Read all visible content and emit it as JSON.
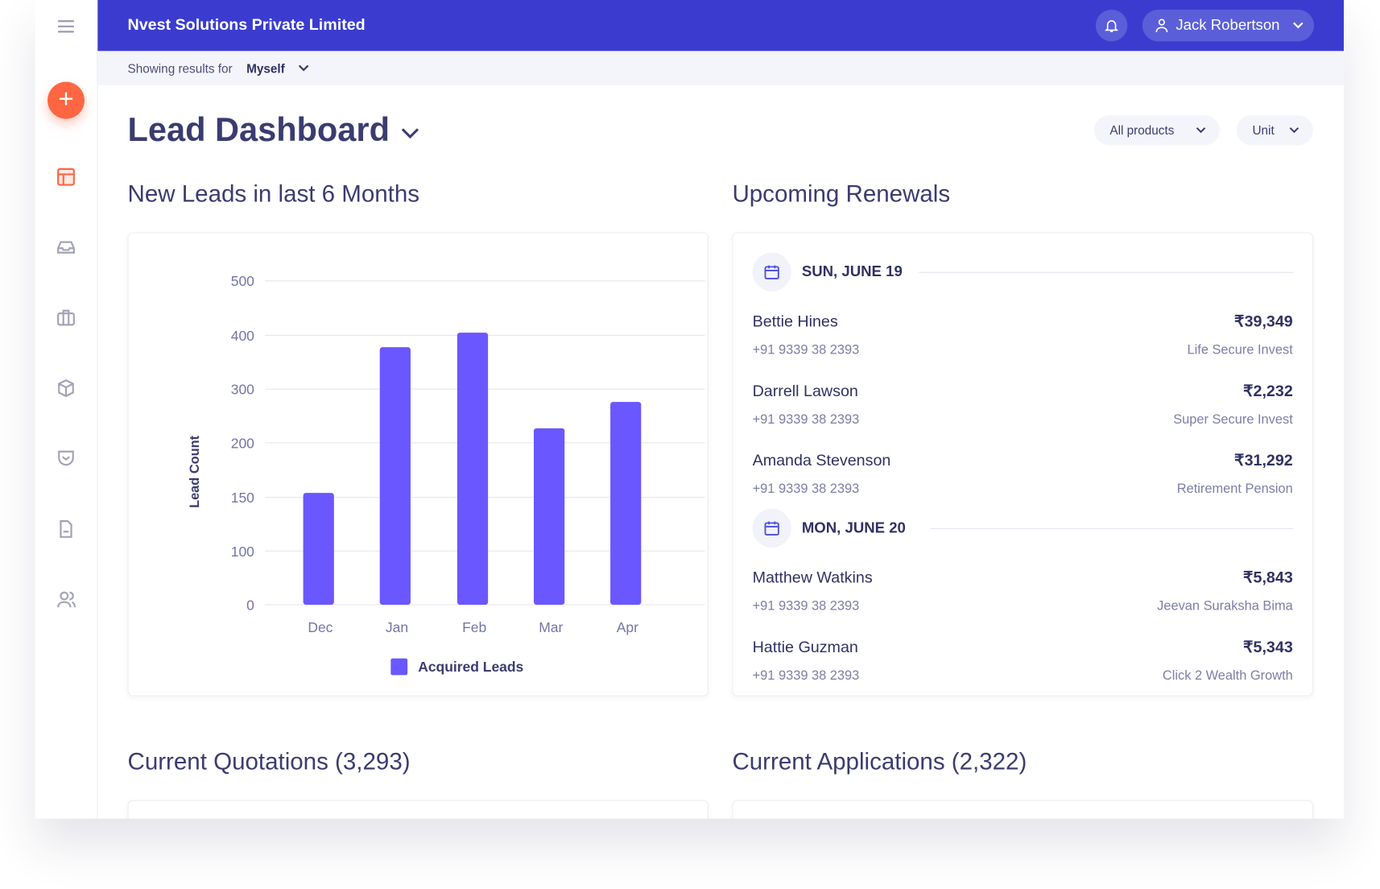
{
  "header": {
    "company": "Nvest Solutions Private Limited",
    "user": "Jack Robertson"
  },
  "subheader": {
    "label": "Showing results for",
    "value": "Myself"
  },
  "page": {
    "title": "Lead Dashboard",
    "filters": [
      "All products",
      "Unit"
    ]
  },
  "sections": {
    "leads": "New Leads in last 6 Months",
    "renewals": "Upcoming Renewals",
    "quotations": "Current Quotations (3,293)",
    "applications": "Current Applications (2,322)"
  },
  "colors": {
    "header": "#3b3ccf",
    "accent": "#ff6641",
    "bar": "#6b57ff"
  },
  "chart_data": {
    "type": "bar",
    "categories": [
      "Dec",
      "Jan",
      "Feb",
      "Mar",
      "Apr"
    ],
    "series": [
      {
        "name": "Acquired Leads",
        "values": [
          154,
          378,
          405,
          227,
          276
        ]
      }
    ],
    "ylabel": "Lead Count",
    "xlabel": "",
    "yticks": [
      "500",
      "400",
      "300",
      "200",
      "150",
      "100",
      "0"
    ],
    "ylim": [
      0,
      500
    ],
    "grid": true,
    "legend": "bottom"
  },
  "renewals": [
    {
      "date": "SUN, JUNE 19",
      "items": [
        {
          "name": "Bettie Hines",
          "phone": "+91 9339 38 2393",
          "amount": "₹39,349",
          "product": "Life Secure Invest"
        },
        {
          "name": "Darrell Lawson",
          "phone": "+91 9339 38 2393",
          "amount": "₹2,232",
          "product": "Super Secure Invest"
        },
        {
          "name": "Amanda Stevenson",
          "phone": "+91 9339 38 2393",
          "amount": "₹31,292",
          "product": "Retirement Pension"
        }
      ]
    },
    {
      "date": "MON, JUNE 20",
      "items": [
        {
          "name": "Matthew Watkins",
          "phone": "+91 9339 38 2393",
          "amount": "₹5,843",
          "product": "Jeevan Suraksha Bima"
        },
        {
          "name": "Hattie Guzman",
          "phone": "+91 9339 38 2393",
          "amount": "₹5,343",
          "product": "Click 2 Wealth Growth"
        }
      ]
    }
  ]
}
